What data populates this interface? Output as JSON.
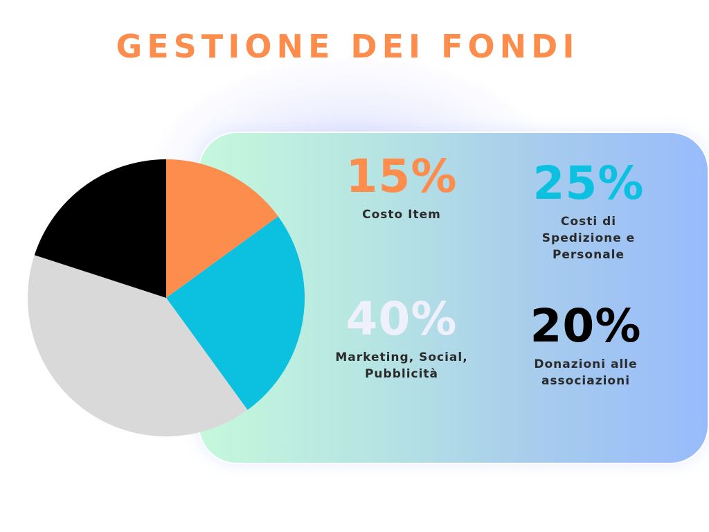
{
  "title": "GESTIONE DEI FONDI",
  "colors": {
    "title": "#fd8d4d",
    "label_text": "#2a2a2a",
    "panel_gradient": [
      "#c5f8dc",
      "#b6e4e3",
      "#a8cdec",
      "#98bbfb"
    ]
  },
  "chart_data": {
    "type": "pie",
    "title": "GESTIONE DEI FONDI",
    "start_angle_deg": 0,
    "direction": "clockwise",
    "slices": [
      {
        "label": "Costo Item",
        "value": 15,
        "display": "15%",
        "color": "#fd8d4d",
        "label_color": "#fd8d4d"
      },
      {
        "label": "Costi di Spedizione e Personale",
        "value": 25,
        "display": "25%",
        "color": "#0cc0df",
        "label_color": "#0cc0df"
      },
      {
        "label": "Marketing, Social, Pubblicità",
        "value": 40,
        "display": "40%",
        "color": "#d9d9d9",
        "label_color": "#eef0fb"
      },
      {
        "label": "Donazioni alle associazioni",
        "value": 20,
        "display": "20%",
        "color": "#000000",
        "label_color": "#000000"
      }
    ]
  },
  "stats": [
    {
      "pct": "15%",
      "label": "Costo Item"
    },
    {
      "pct": "25%",
      "label": "Costi di\nSpedizione e\nPersonale"
    },
    {
      "pct": "40%",
      "label": "Marketing, Social,\nPubblicità"
    },
    {
      "pct": "20%",
      "label": "Donazioni alle\nassociazioni"
    }
  ]
}
